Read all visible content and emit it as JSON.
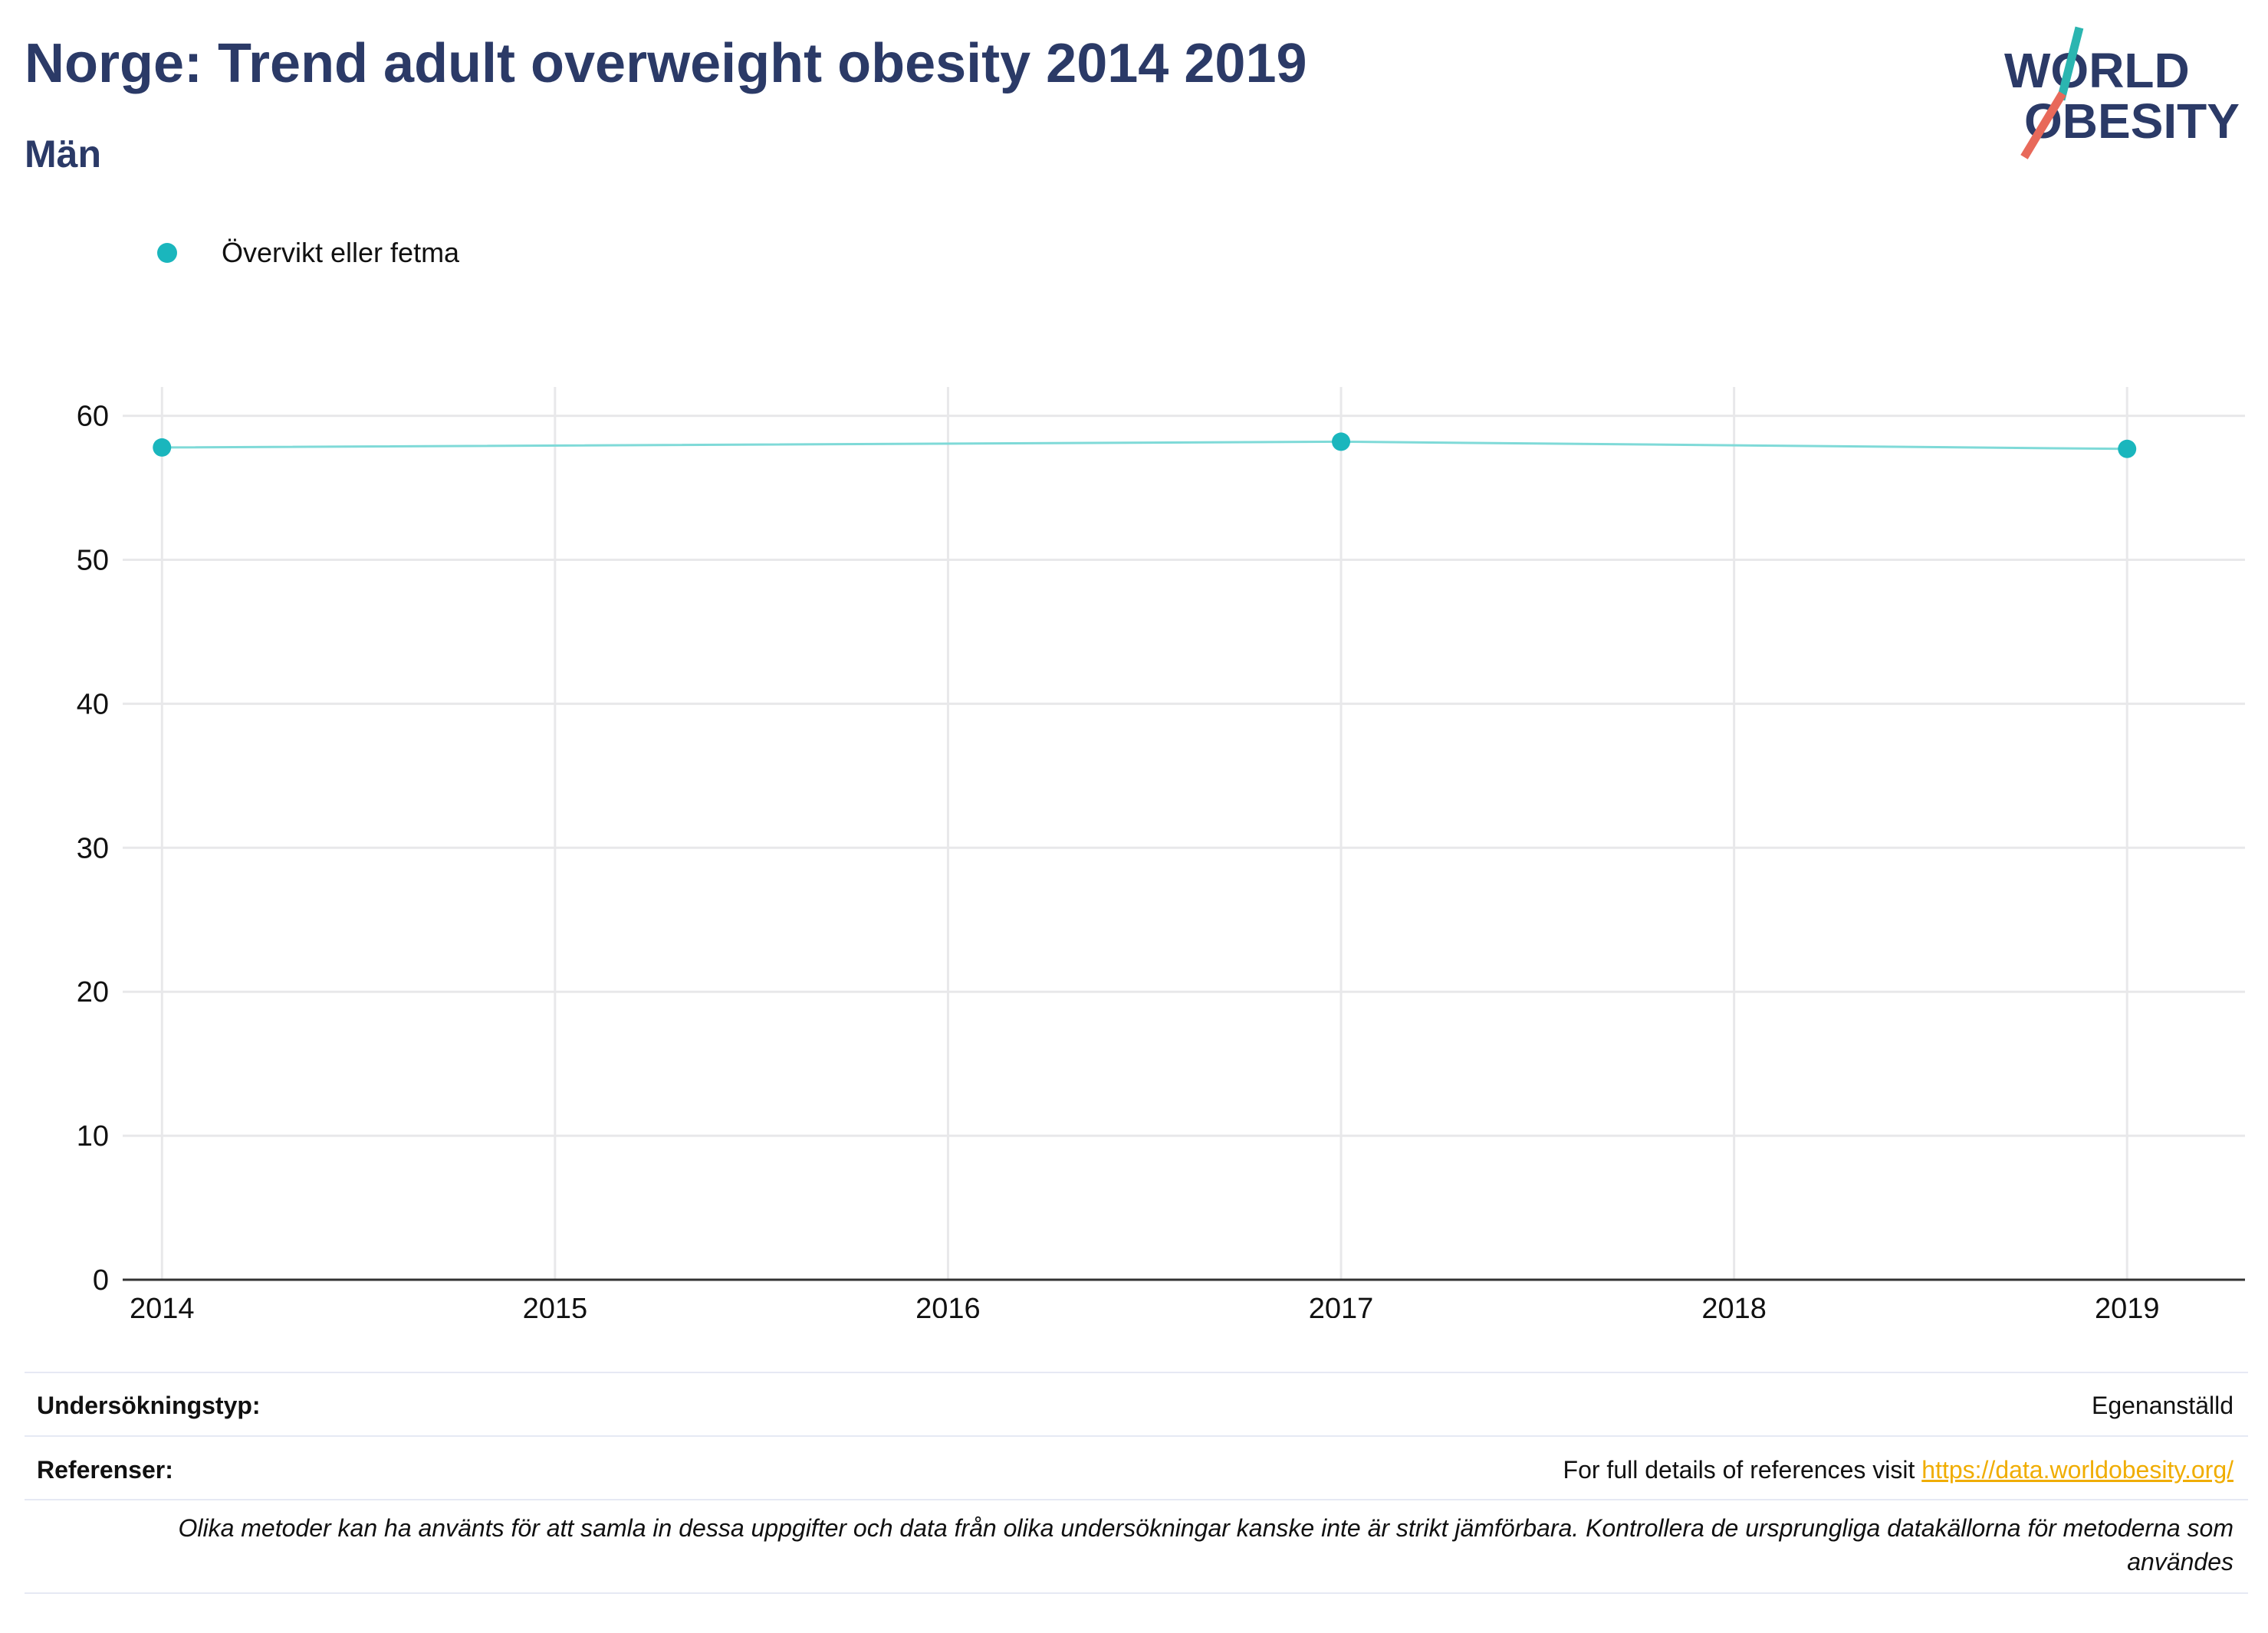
{
  "header": {
    "title": "Norge: Trend adult overweight obesity 2014 2019",
    "subtitle": "Män"
  },
  "logo": {
    "line1": "WORLD",
    "line2": "OBESITY",
    "colors": {
      "text": "#2b3a67",
      "slash_top": "#2bb5b0",
      "slash_bottom": "#e8695a"
    }
  },
  "legend": {
    "items": [
      {
        "label": "Övervikt eller fetma",
        "color": "#1ab6bd"
      }
    ]
  },
  "chart_data": {
    "type": "line",
    "x": [
      2014,
      2017,
      2019
    ],
    "series": [
      {
        "name": "Övervikt eller fetma",
        "values": [
          57.8,
          58.2,
          57.7
        ],
        "color": "#1ab6bd",
        "line_color": "#7fdad8"
      }
    ],
    "x_ticks": [
      "2014",
      "2015",
      "2016",
      "2017",
      "2018",
      "2019"
    ],
    "y_ticks": [
      "0",
      "10",
      "20",
      "30",
      "40",
      "50",
      "60"
    ],
    "xlim": [
      2013.9,
      2019.3
    ],
    "ylim": [
      0,
      62
    ],
    "grid": true,
    "legend_position": "top-left"
  },
  "footer": {
    "survey_type_label": "Undersökningstyp:",
    "survey_type_value": "Egenanställd",
    "references_label": "Referenser:",
    "references_text": "For full details of references visit ",
    "references_link": "https://data.worldobesity.org/",
    "note": "Olika metoder kan ha använts för att samla in dessa uppgifter och data från olika undersökningar kanske inte är strikt jämförbara. Kontrollera de ursprungliga datakällorna för metoderna som användes"
  }
}
